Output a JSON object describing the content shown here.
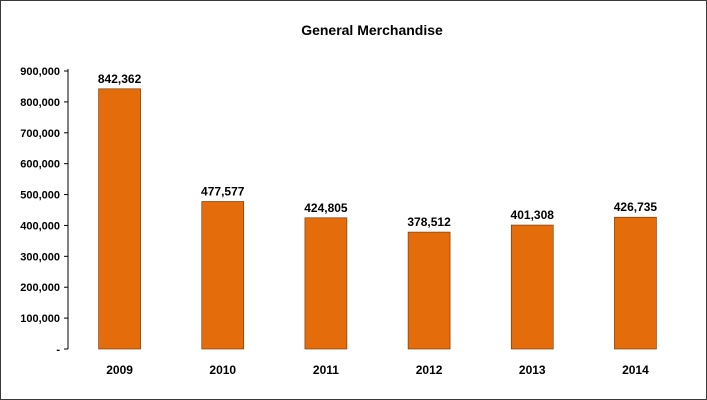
{
  "chart_data": {
    "type": "bar",
    "title": "General Merchandise",
    "xlabel": "",
    "ylabel": "",
    "categories": [
      "2009",
      "2010",
      "2011",
      "2012",
      "2013",
      "2014"
    ],
    "values": [
      842362,
      477577,
      424805,
      378512,
      401308,
      426735
    ],
    "value_labels": [
      "842,362",
      "477,577",
      "424,805",
      "378,512",
      "401,308",
      "426,735"
    ],
    "ylim": [
      0,
      900000
    ],
    "yticks": [
      0,
      100000,
      200000,
      300000,
      400000,
      500000,
      600000,
      700000,
      800000,
      900000
    ],
    "ytick_labels": [
      "-",
      "100,000",
      "200,000",
      "300,000",
      "400,000",
      "500,000",
      "600,000",
      "700,000",
      "800,000",
      "900,000"
    ],
    "grid": false,
    "legend": "none",
    "bar_color": "#E46C0A",
    "bar_edge_color": "#6b3000"
  }
}
